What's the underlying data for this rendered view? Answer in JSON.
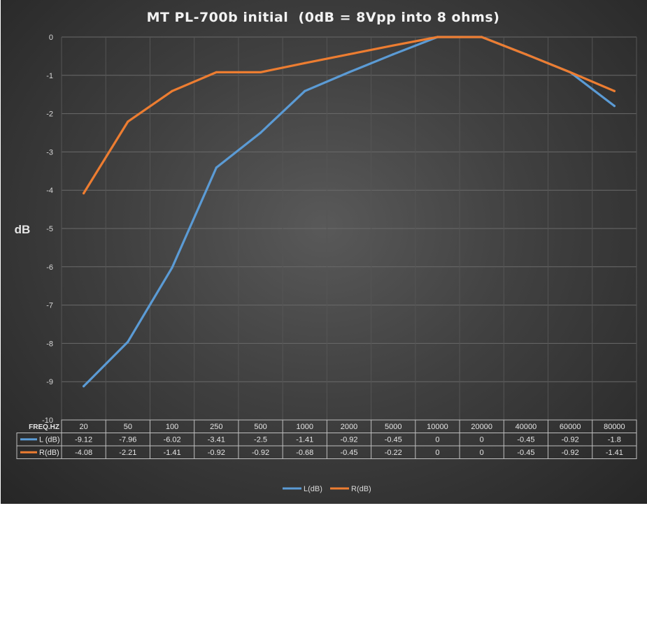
{
  "chart_data": {
    "type": "line",
    "title": "MT PL-700b initial  (0dB = 8Vpp into 8 ohms)",
    "ylabel": "dB",
    "xlabel": "",
    "table_header": "FREQ.HZ",
    "categories": [
      "20",
      "50",
      "100",
      "250",
      "500",
      "1000",
      "2000",
      "5000",
      "10000",
      "20000",
      "40000",
      "60000",
      "80000"
    ],
    "ylim": [
      -10,
      0
    ],
    "yticks": [
      0,
      -1,
      -2,
      -3,
      -4,
      -5,
      -6,
      -7,
      -8,
      -9,
      -10
    ],
    "grid": true,
    "legend_position": "bottom",
    "series": [
      {
        "name": "L (dB)",
        "color": "#5b9bd5",
        "values": [
          -9.12,
          -7.96,
          -6.02,
          -3.41,
          -2.5,
          -1.41,
          -0.92,
          -0.45,
          0,
          0,
          -0.45,
          -0.92,
          -1.8
        ]
      },
      {
        "name": "R(dB)",
        "color": "#ed7d31",
        "values": [
          -4.08,
          -2.21,
          -1.41,
          -0.92,
          -0.92,
          -0.68,
          -0.45,
          -0.22,
          0,
          0,
          -0.45,
          -0.92,
          -1.41
        ]
      }
    ],
    "legend": [
      "L(dB)",
      "R(dB)"
    ]
  }
}
